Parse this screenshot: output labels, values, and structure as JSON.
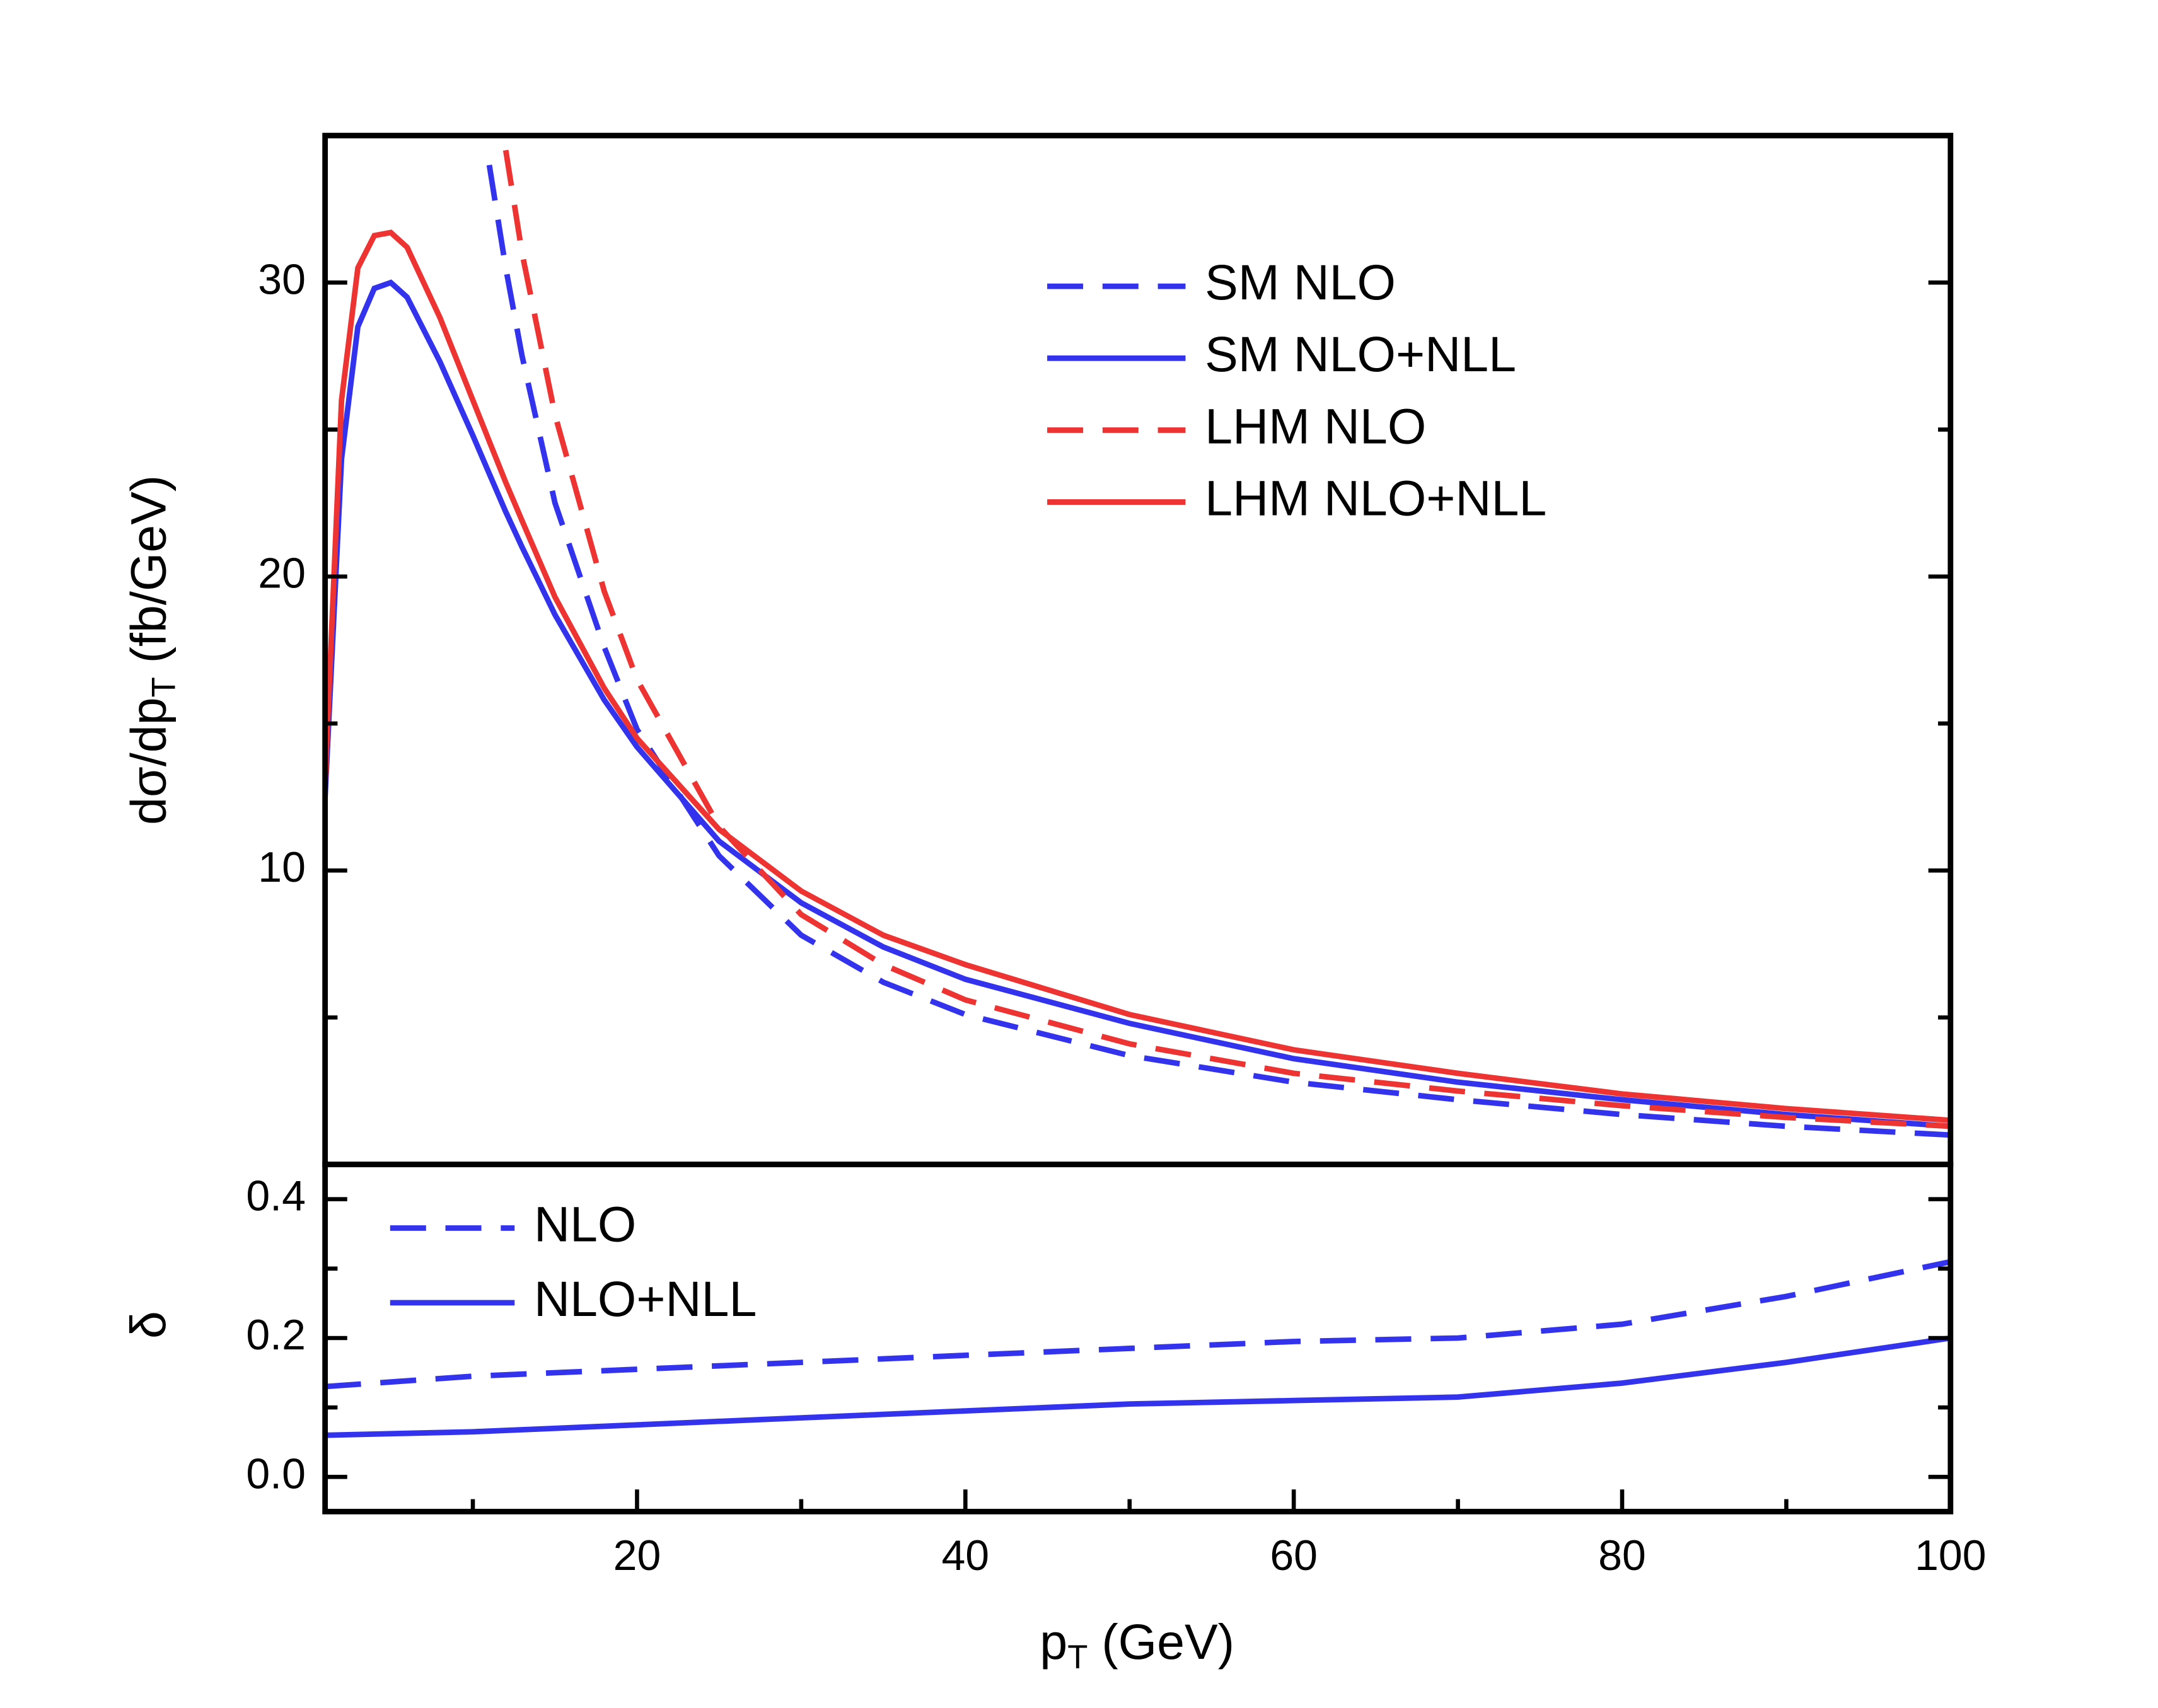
{
  "chart_data": [
    {
      "type": "line",
      "y_label": [
        "dσ/dp",
        "T",
        " (fb/GeV)"
      ],
      "x": [
        1,
        2,
        3,
        4,
        5,
        6,
        8,
        10,
        11,
        12,
        13,
        15,
        18,
        20,
        25,
        30,
        35,
        40,
        50,
        60,
        70,
        80,
        90,
        100
      ],
      "xlim": [
        1,
        100
      ],
      "ylim": [
        0,
        35
      ],
      "yticks": [
        10,
        20,
        30
      ],
      "yminorticks": [
        5,
        15,
        25
      ],
      "legend": "upper right",
      "series": [
        {
          "name": "SM NLO",
          "color": "#3333ee",
          "dashed": true,
          "values": [
            null,
            null,
            null,
            null,
            null,
            null,
            null,
            null,
            34,
            30.5,
            27.5,
            22.5,
            17.6,
            14.8,
            10.5,
            7.8,
            6.2,
            5.1,
            3.7,
            2.8,
            2.2,
            1.7,
            1.3,
            1.0
          ]
        },
        {
          "name": "SM NLO+NLL",
          "color": "#3333ee",
          "dashed": false,
          "values": [
            12.5,
            24,
            28.5,
            29.8,
            30,
            29.5,
            27.3,
            24.8,
            23.5,
            22.2,
            21,
            18.7,
            15.8,
            14.2,
            11.0,
            8.9,
            7.4,
            6.3,
            4.8,
            3.6,
            2.8,
            2.2,
            1.7,
            1.3
          ]
        },
        {
          "name": "LHM NLO",
          "color": "#ee3333",
          "dashed": true,
          "values": [
            null,
            null,
            null,
            null,
            null,
            null,
            null,
            null,
            null,
            34.5,
            31,
            25.5,
            19.5,
            16.5,
            11.5,
            8.5,
            6.8,
            5.6,
            4.1,
            3.1,
            2.5,
            2.0,
            1.6,
            1.3
          ]
        },
        {
          "name": "LHM NLO+NLL",
          "color": "#ee3333",
          "dashed": false,
          "values": [
            13,
            26,
            30.5,
            31.6,
            31.7,
            31.2,
            28.8,
            26,
            24.6,
            23.2,
            21.9,
            19.3,
            16.2,
            14.5,
            11.4,
            9.3,
            7.8,
            6.8,
            5.1,
            3.9,
            3.1,
            2.4,
            1.9,
            1.5
          ]
        }
      ]
    },
    {
      "type": "line",
      "y_label": [
        "δ"
      ],
      "x_label": [
        "p",
        "T",
        " (GeV)"
      ],
      "x": [
        1,
        10,
        20,
        30,
        40,
        50,
        60,
        70,
        80,
        90,
        100
      ],
      "xlim": [
        1,
        100
      ],
      "xticks": [
        20,
        40,
        60,
        80,
        100
      ],
      "xminorticks": [
        10,
        30,
        50,
        70,
        90
      ],
      "ylim": [
        -0.05,
        0.45
      ],
      "yticks": [
        {
          "value": 0,
          "label": "0.0"
        },
        0.2,
        0.4
      ],
      "yminorticks": [
        0.1,
        0.3
      ],
      "legend": "upper left",
      "series": [
        {
          "name": "NLO",
          "color": "#3333ee",
          "dashed": true,
          "values": [
            0.13,
            0.145,
            0.155,
            0.165,
            0.175,
            0.185,
            0.195,
            0.2,
            0.22,
            0.26,
            0.31
          ]
        },
        {
          "name": "NLO+NLL",
          "color": "#3333ee",
          "dashed": false,
          "values": [
            0.06,
            0.065,
            0.075,
            0.085,
            0.095,
            0.105,
            0.11,
            0.115,
            0.135,
            0.165,
            0.2
          ]
        }
      ]
    }
  ]
}
